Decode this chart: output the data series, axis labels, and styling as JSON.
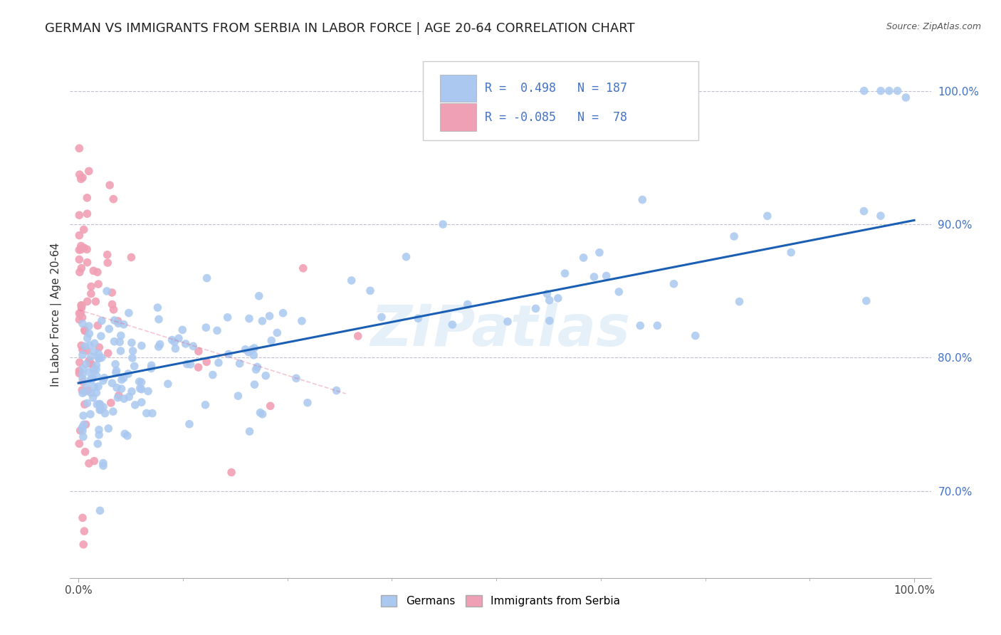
{
  "title": "GERMAN VS IMMIGRANTS FROM SERBIA IN LABOR FORCE | AGE 20-64 CORRELATION CHART",
  "source": "Source: ZipAtlas.com",
  "ylabel": "In Labor Force | Age 20-64",
  "xlim": [
    -0.01,
    1.02
  ],
  "ylim": [
    0.635,
    1.03
  ],
  "xtick_positions": [
    0.0,
    1.0
  ],
  "xtick_labels": [
    "0.0%",
    "100.0%"
  ],
  "ytick_positions": [
    0.7,
    0.8,
    0.9,
    1.0
  ],
  "ytick_labels": [
    "70.0%",
    "80.0%",
    "90.0%",
    "100.0%"
  ],
  "legend_label_blue": "Germans",
  "legend_label_pink": "Immigrants from Serbia",
  "r_blue": "0.498",
  "n_blue": "187",
  "r_pink": "-0.085",
  "n_pink": "78",
  "blue_color": "#aac8f0",
  "pink_color": "#f0a0b4",
  "blue_line_color": "#1a5fb4",
  "pink_line_color": "#e06080",
  "watermark": "ZIPatlas",
  "background_color": "#ffffff",
  "grid_color": "#c0c0d0",
  "title_fontsize": 13,
  "axis_label_fontsize": 11,
  "tick_fontsize": 11,
  "dot_size": 70,
  "blue_line_start_x": 0.0,
  "blue_line_start_y": 0.781,
  "blue_line_end_x": 1.0,
  "blue_line_end_y": 0.903,
  "pink_line_start_x": 0.0,
  "pink_line_start_y": 0.836,
  "pink_line_end_x": 0.32,
  "pink_line_end_y": 0.773
}
